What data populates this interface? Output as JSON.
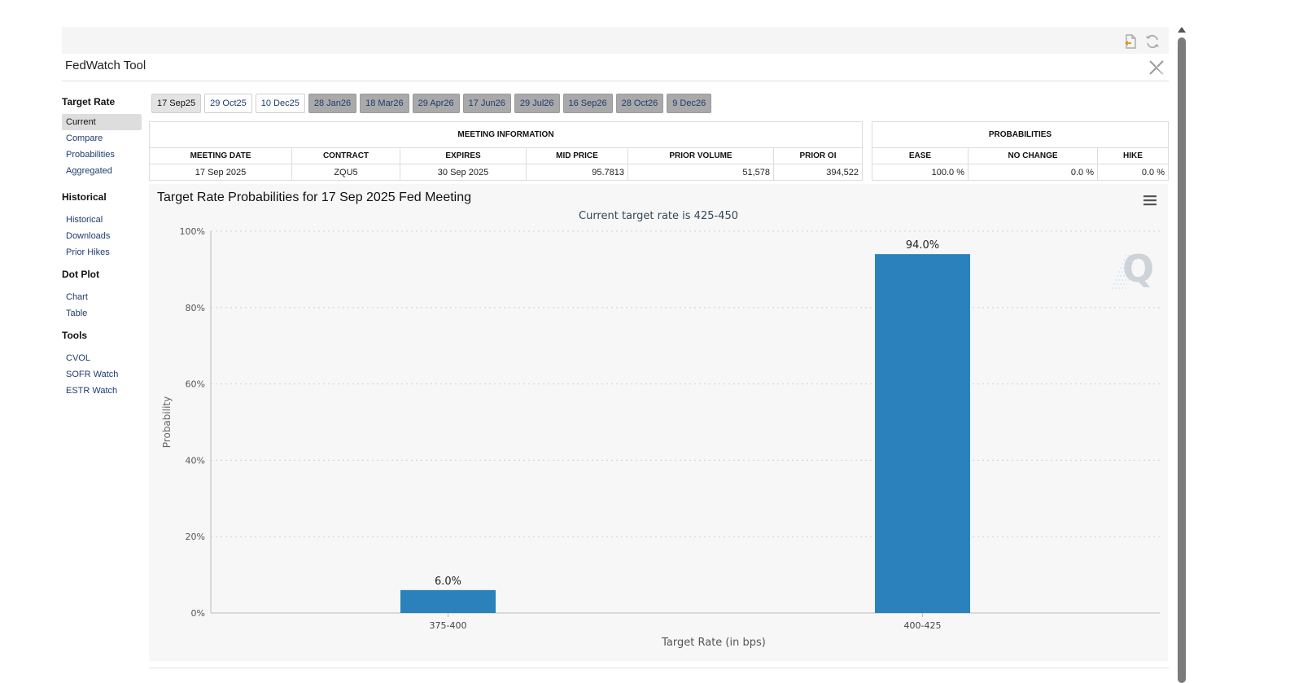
{
  "header": {
    "title": "FedWatch Tool"
  },
  "icons": {
    "export": "export-file-icon",
    "refresh": "refresh-icon",
    "x_logo": "x-logo-icon",
    "menu": "hamburger-menu-icon",
    "watermark": "q-watermark-logo"
  },
  "sidebar": {
    "sections": [
      {
        "title": "Target Rate",
        "items": [
          "Current",
          "Compare",
          "Probabilities",
          "Aggregated"
        ],
        "active": 0
      },
      {
        "title": "Historical",
        "items": [
          "Historical",
          "Downloads",
          "Prior Hikes"
        ]
      },
      {
        "title": "Dot Plot",
        "items": [
          "Chart",
          "Table"
        ]
      },
      {
        "title": "Tools",
        "items": [
          "CVOL",
          "SOFR Watch",
          "ESTR Watch"
        ]
      }
    ]
  },
  "tabs": [
    {
      "label": "17 Sep25",
      "state": "active"
    },
    {
      "label": "29 Oct25",
      "state": "normal"
    },
    {
      "label": "10 Dec25",
      "state": "normal"
    },
    {
      "label": "28 Jan26",
      "state": "dim"
    },
    {
      "label": "18 Mar26",
      "state": "dim"
    },
    {
      "label": "29 Apr26",
      "state": "dim"
    },
    {
      "label": "17 Jun26",
      "state": "dim"
    },
    {
      "label": "29 Jul26",
      "state": "dim"
    },
    {
      "label": "16 Sep26",
      "state": "dim"
    },
    {
      "label": "28 Oct26",
      "state": "dim"
    },
    {
      "label": "9 Dec26",
      "state": "dim"
    }
  ],
  "meeting_info": {
    "caption": "MEETING INFORMATION",
    "headers": [
      "MEETING DATE",
      "CONTRACT",
      "EXPIRES",
      "MID PRICE",
      "PRIOR VOLUME",
      "PRIOR OI"
    ],
    "row": [
      "17 Sep 2025",
      "ZQU5",
      "30 Sep 2025",
      "95.7813",
      "51,578",
      "394,522"
    ]
  },
  "probabilities": {
    "caption": "PROBABILITIES",
    "headers": [
      "EASE",
      "NO CHANGE",
      "HIKE"
    ],
    "row": [
      "100.0 %",
      "0.0 %",
      "0.0 %"
    ]
  },
  "chart": {
    "title": "Target Rate Probabilities for 17 Sep 2025 Fed Meeting",
    "subtitle": "Current target rate is 425-450"
  },
  "chart_data": {
    "type": "bar",
    "categories": [
      "375-400",
      "400-425"
    ],
    "values": [
      6.0,
      94.0
    ],
    "data_labels": [
      "6.0%",
      "94.0%"
    ],
    "xlabel": "Target Rate (in bps)",
    "ylabel": "Probability",
    "ylim": [
      0,
      100
    ],
    "yticks": [
      "0%",
      "20%",
      "40%",
      "60%",
      "80%",
      "100%"
    ],
    "grid": true,
    "bar_color": "#2a81bb"
  }
}
